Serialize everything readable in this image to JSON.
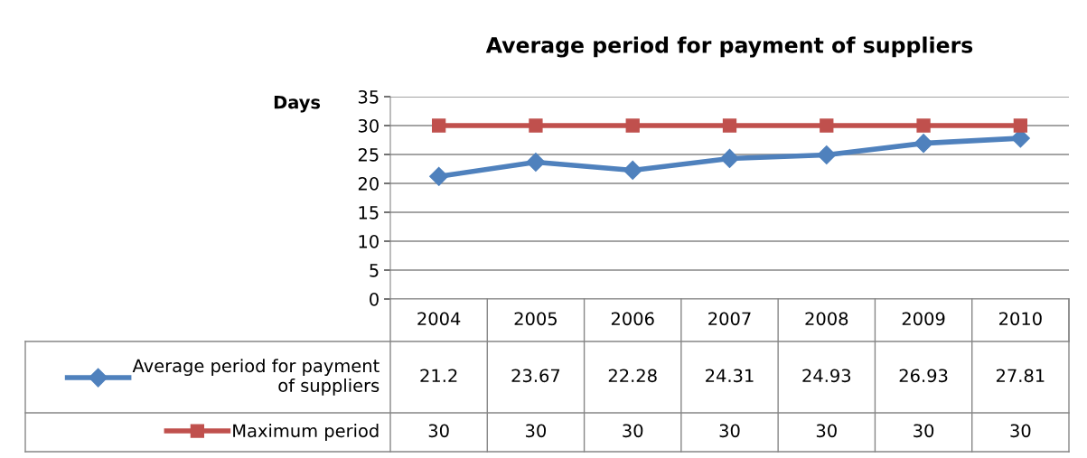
{
  "chart_data": {
    "type": "line",
    "title": "Average period for payment of suppliers",
    "ylabel": "Days",
    "categories": [
      "2004",
      "2005",
      "2006",
      "2007",
      "2008",
      "2009",
      "2010"
    ],
    "series": [
      {
        "name": "Average period for payment of suppliers",
        "color": "#4f81bd",
        "marker": "diamond",
        "values": [
          21.2,
          23.67,
          22.28,
          24.31,
          24.93,
          26.93,
          27.81
        ]
      },
      {
        "name": "Maximum period",
        "color": "#c0504d",
        "marker": "square",
        "values": [
          30,
          30,
          30,
          30,
          30,
          30,
          30
        ]
      }
    ],
    "ylim": [
      0,
      35
    ],
    "yticks": [
      0,
      5,
      10,
      15,
      20,
      25,
      30,
      35
    ],
    "grid": "y",
    "legend": "bottom",
    "data_labels": true
  }
}
